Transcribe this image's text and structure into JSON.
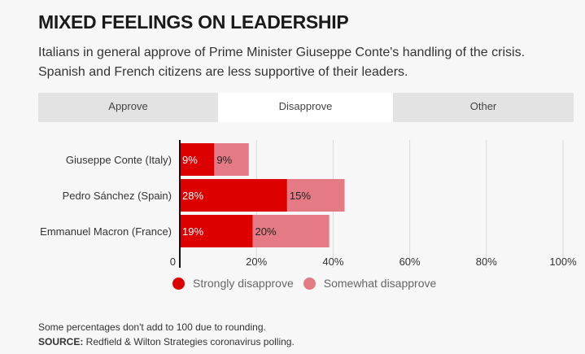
{
  "header": {
    "title": "MIXED FEELINGS ON LEADERSHIP",
    "subtitle_line1": "Italians in general approve of Prime Minister Giuseppe Conte's handling of the crisis.",
    "subtitle_line2": "Spanish and French citizens are less supportive of their leaders."
  },
  "tabs": [
    {
      "label": "Approve",
      "active": false
    },
    {
      "label": "Disapprove",
      "active": true
    },
    {
      "label": "Other",
      "active": false
    }
  ],
  "colors": {
    "strong": "#dd0000",
    "somewhat": "#e47b84",
    "grid": "#d9d9d9",
    "axis": "#111111"
  },
  "chart_data": {
    "type": "bar",
    "orientation": "horizontal",
    "stacked": true,
    "categories": [
      "Giuseppe Conte (Italy)",
      "Pedro Sánchez (Spain)",
      "Emmanuel Macron (France)"
    ],
    "series": [
      {
        "name": "Strongly disapprove",
        "values": [
          9,
          28,
          19
        ],
        "labels": [
          "9%",
          "28%",
          "19%"
        ]
      },
      {
        "name": "Somewhat disapprove",
        "values": [
          9,
          15,
          20
        ],
        "labels": [
          "9%",
          "15%",
          "20%"
        ]
      }
    ],
    "xlim": [
      0,
      100
    ],
    "xticks": [
      0,
      20,
      40,
      60,
      80,
      100
    ],
    "xtick_labels": [
      "0",
      "20%",
      "40%",
      "60%",
      "80%",
      "100%"
    ],
    "grid": true,
    "legend": "bottom"
  },
  "footer": {
    "note": "Some percentages don't add to 100 due to rounding.",
    "source_label": "SOURCE:",
    "source_text": " Redfield & Wilton Strategies coronavirus polling."
  }
}
